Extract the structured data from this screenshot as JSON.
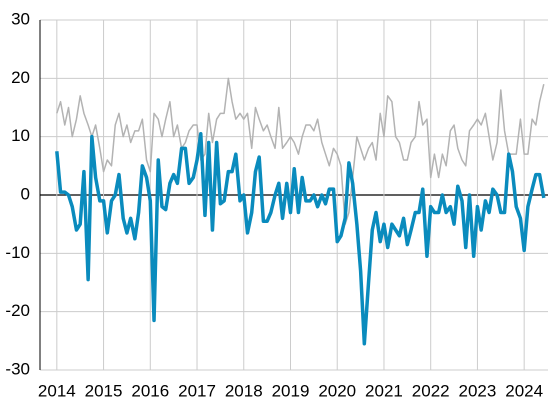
{
  "chart_data": {
    "type": "line",
    "x": [
      2014,
      2014.08,
      2014.17,
      2014.25,
      2014.33,
      2014.42,
      2014.5,
      2014.58,
      2014.67,
      2014.75,
      2014.83,
      2014.92,
      2015,
      2015.08,
      2015.17,
      2015.25,
      2015.33,
      2015.42,
      2015.5,
      2015.58,
      2015.67,
      2015.75,
      2015.83,
      2015.92,
      2016,
      2016.08,
      2016.17,
      2016.25,
      2016.33,
      2016.42,
      2016.5,
      2016.58,
      2016.67,
      2016.75,
      2016.83,
      2016.92,
      2017,
      2017.08,
      2017.17,
      2017.25,
      2017.33,
      2017.42,
      2017.5,
      2017.58,
      2017.67,
      2017.75,
      2017.83,
      2017.92,
      2018,
      2018.08,
      2018.17,
      2018.25,
      2018.33,
      2018.42,
      2018.5,
      2018.58,
      2018.67,
      2018.75,
      2018.83,
      2018.92,
      2019,
      2019.08,
      2019.17,
      2019.25,
      2019.33,
      2019.42,
      2019.5,
      2019.58,
      2019.67,
      2019.75,
      2019.83,
      2019.92,
      2020,
      2020.08,
      2020.17,
      2020.25,
      2020.33,
      2020.42,
      2020.5,
      2020.58,
      2020.67,
      2020.75,
      2020.83,
      2020.92,
      2021,
      2021.08,
      2021.17,
      2021.25,
      2021.33,
      2021.42,
      2021.5,
      2021.58,
      2021.67,
      2021.75,
      2021.83,
      2021.92,
      2022,
      2022.08,
      2022.17,
      2022.25,
      2022.33,
      2022.42,
      2022.5,
      2022.58,
      2022.67,
      2022.75,
      2022.83,
      2022.92,
      2023,
      2023.08,
      2023.17,
      2023.25,
      2023.33,
      2023.42,
      2023.5,
      2023.58,
      2023.67,
      2023.75,
      2023.83,
      2023.92,
      2024,
      2024.08,
      2024.17,
      2024.25,
      2024.33,
      2024.42
    ],
    "series": [
      {
        "color": "#b3b3b3",
        "width": 1.5,
        "values": [
          14,
          16,
          12,
          15,
          10,
          13,
          17,
          14,
          12,
          10,
          12,
          8,
          4,
          6,
          5,
          12,
          14,
          10,
          12,
          9,
          11,
          11,
          13,
          6,
          4,
          14,
          13,
          10,
          13,
          16,
          10,
          12,
          8,
          9,
          11,
          12,
          12,
          6,
          7,
          14,
          9,
          13,
          14,
          14,
          20,
          16,
          13,
          14,
          13,
          14,
          8,
          15,
          13,
          11,
          12,
          10,
          8,
          15,
          8,
          9,
          10,
          9,
          7,
          10,
          12,
          12,
          11,
          13,
          9,
          7,
          5,
          8,
          7,
          5,
          -5,
          -3,
          3,
          10,
          8,
          6,
          8,
          9,
          6,
          14,
          10,
          17,
          16,
          10,
          9,
          6,
          6,
          9,
          10,
          16,
          12,
          13,
          3,
          7,
          3,
          7,
          5,
          11,
          12,
          8,
          6,
          5,
          11,
          12,
          13,
          12,
          14,
          10,
          6,
          9,
          18,
          11,
          7,
          7,
          7,
          13,
          7,
          7,
          13,
          12,
          16,
          19
        ]
      },
      {
        "color": "#0a8bbd",
        "width": 3.5,
        "values": [
          7.5,
          0.5,
          0.5,
          0,
          -2,
          -6,
          -5,
          4,
          -14.5,
          10,
          3,
          -1,
          -1,
          -6.5,
          -1,
          0,
          3.5,
          -4,
          -6.5,
          -4,
          -7.5,
          -3,
          5,
          3,
          -1,
          -21.5,
          6,
          -2,
          -2.5,
          2,
          3.5,
          2,
          8,
          8,
          2,
          3,
          6,
          10.5,
          -3.5,
          9,
          -6,
          9,
          -1.5,
          -1,
          4,
          4,
          7,
          -1,
          0,
          -6.5,
          -3,
          4,
          6.5,
          -4.5,
          -4.5,
          -3,
          0,
          2,
          -4,
          2,
          -3,
          4.5,
          -3,
          3,
          -1,
          -1,
          0,
          -2,
          0,
          -1.5,
          1,
          1,
          -8,
          -7,
          -4,
          5.5,
          2,
          -5,
          -13,
          -25.5,
          -15,
          -6,
          -3,
          -8,
          -5,
          -9,
          -5,
          -6,
          -7,
          -4,
          -8.5,
          -6,
          -3,
          -3,
          1,
          -10.5,
          -2,
          -3,
          -3,
          0,
          -3,
          -2,
          -5,
          1.5,
          -1,
          -9,
          0,
          -10.5,
          -2,
          -6,
          -1,
          -3,
          1,
          0,
          -3,
          -3,
          7,
          4,
          -2,
          -4,
          -9.5,
          -2,
          1,
          3.5,
          3.5,
          -0.5
        ]
      }
    ],
    "xlim": [
      2013.64,
      2024.51
    ],
    "xticks": [
      2014,
      2015,
      2016,
      2017,
      2018,
      2019,
      2020,
      2021,
      2022,
      2023,
      2024
    ],
    "ylim": [
      -30,
      30
    ],
    "yticks": [
      -30,
      -20,
      -10,
      0,
      10,
      20,
      30
    ],
    "grid": true
  }
}
